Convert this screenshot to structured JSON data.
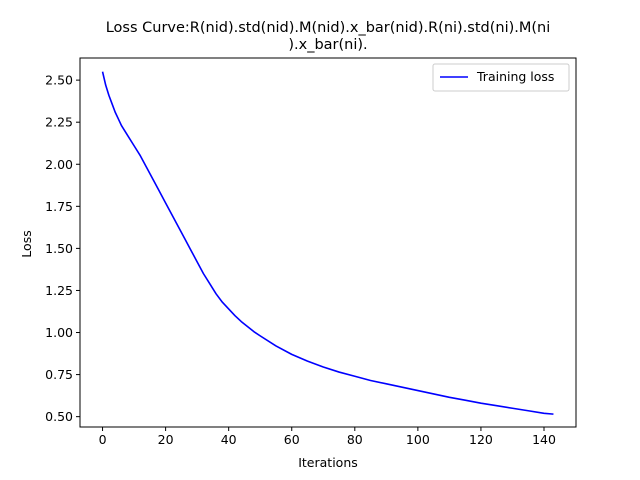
{
  "chart_data": {
    "type": "line",
    "title_lines": [
      "Loss Curve:R(nid).std(nid).M(nid).x_bar(nid).R(ni).std(ni).M(ni",
      ").x_bar(ni)."
    ],
    "xlabel": "Iterations",
    "ylabel": "Loss",
    "xlim": [
      -7.15,
      150.15
    ],
    "ylim": [
      0.4385,
      2.6315
    ],
    "xticks": [
      0,
      20,
      40,
      60,
      80,
      100,
      120,
      140
    ],
    "xtick_labels": [
      "0",
      "20",
      "40",
      "60",
      "80",
      "100",
      "120",
      "140"
    ],
    "yticks": [
      0.5,
      0.75,
      1.0,
      1.25,
      1.5,
      1.75,
      2.0,
      2.25,
      2.5
    ],
    "ytick_labels": [
      "0.50",
      "0.75",
      "1.00",
      "1.25",
      "1.50",
      "1.75",
      "2.00",
      "2.25",
      "2.50"
    ],
    "grid": false,
    "legend_position": "top-right",
    "series": [
      {
        "name": "Training loss",
        "color": "#0000ff",
        "x": [
          0,
          1,
          2,
          3,
          4,
          5,
          6,
          8,
          10,
          12,
          14,
          16,
          18,
          20,
          22,
          24,
          26,
          28,
          30,
          32,
          34,
          36,
          38,
          40,
          42,
          44,
          46,
          48,
          50,
          55,
          60,
          65,
          70,
          75,
          80,
          85,
          90,
          95,
          100,
          105,
          110,
          115,
          120,
          125,
          130,
          135,
          140,
          143
        ],
        "y": [
          2.55,
          2.47,
          2.41,
          2.36,
          2.31,
          2.27,
          2.23,
          2.17,
          2.11,
          2.05,
          1.98,
          1.91,
          1.84,
          1.77,
          1.7,
          1.63,
          1.56,
          1.49,
          1.42,
          1.35,
          1.29,
          1.23,
          1.18,
          1.14,
          1.1,
          1.065,
          1.035,
          1.005,
          0.98,
          0.92,
          0.87,
          0.83,
          0.795,
          0.765,
          0.74,
          0.715,
          0.695,
          0.675,
          0.655,
          0.635,
          0.615,
          0.598,
          0.58,
          0.565,
          0.55,
          0.535,
          0.52,
          0.515
        ]
      }
    ]
  }
}
